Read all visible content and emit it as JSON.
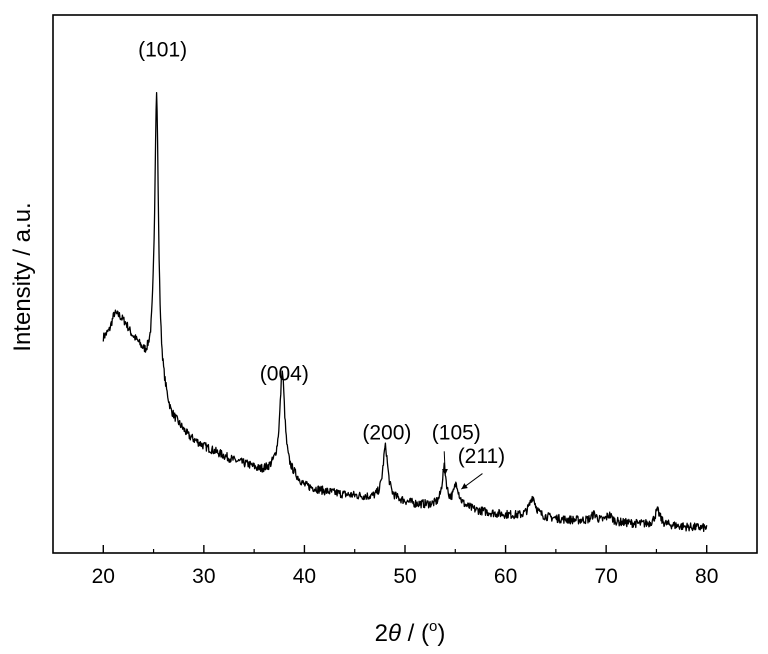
{
  "chart_data": {
    "type": "line",
    "xlabel": {
      "prefix": "2",
      "theta": "θ",
      "sep": " / (",
      "degree": "o",
      "suffix": ")"
    },
    "ylabel": "Intensity / a.u.",
    "xlim": [
      15,
      85
    ],
    "ylim": [
      0,
      100
    ],
    "y_ticks_shown": false,
    "x_ticks": [
      20,
      30,
      40,
      50,
      60,
      70,
      80
    ],
    "x_tick_labels": [
      "20",
      "30",
      "40",
      "50",
      "60",
      "70",
      "80"
    ],
    "grid": false,
    "line_color": "#000000",
    "baseline_points": [
      [
        20.0,
        45.5
      ],
      [
        20.6,
        47.0
      ],
      [
        21.1,
        50.5
      ],
      [
        21.6,
        50.0
      ],
      [
        22.2,
        48.5
      ],
      [
        22.8,
        46.0
      ],
      [
        23.5,
        43.8
      ],
      [
        24.2,
        41.0
      ],
      [
        24.7,
        40.5
      ],
      [
        25.0,
        42.0
      ],
      [
        26.0,
        34.0
      ],
      [
        26.7,
        29.0
      ],
      [
        27.5,
        27.0
      ],
      [
        28.5,
        24.5
      ],
      [
        30.0,
        22.5
      ],
      [
        31.5,
        21.0
      ],
      [
        33.0,
        19.5
      ],
      [
        34.5,
        18.5
      ],
      [
        35.5,
        17.5
      ],
      [
        36.5,
        17.5
      ],
      [
        37.0,
        17.8
      ],
      [
        39.0,
        16.0
      ],
      [
        40.0,
        14.0
      ],
      [
        42.0,
        13.0
      ],
      [
        44.0,
        12.3
      ],
      [
        46.0,
        11.8
      ],
      [
        47.0,
        11.5
      ],
      [
        47.6,
        11.5
      ],
      [
        49.5,
        11.0
      ],
      [
        51.0,
        10.3
      ],
      [
        53.0,
        10.0
      ],
      [
        53.6,
        10.0
      ],
      [
        55.7,
        9.8
      ],
      [
        57.0,
        9.0
      ],
      [
        59.0,
        8.3
      ],
      [
        61.5,
        7.8
      ],
      [
        62.2,
        8.0
      ],
      [
        64.0,
        7.5
      ],
      [
        66.0,
        7.0
      ],
      [
        68.0,
        6.8
      ],
      [
        70.0,
        6.5
      ],
      [
        72.0,
        6.3
      ],
      [
        74.0,
        6.0
      ],
      [
        76.5,
        5.8
      ],
      [
        78.0,
        5.5
      ],
      [
        80.0,
        5.3
      ]
    ],
    "peaks": [
      {
        "center": 25.3,
        "height": 57.5,
        "width": 0.22
      },
      {
        "center": 37.8,
        "height": 21.0,
        "width": 0.3
      },
      {
        "center": 48.05,
        "height": 11.0,
        "width": 0.3
      },
      {
        "center": 53.9,
        "height": 7.8,
        "width": 0.26
      },
      {
        "center": 55.1,
        "height": 4.5,
        "width": 0.3
      },
      {
        "center": 62.7,
        "height": 4.0,
        "width": 0.35
      },
      {
        "center": 68.8,
        "height": 1.5,
        "width": 0.3
      },
      {
        "center": 70.3,
        "height": 1.5,
        "width": 0.35
      },
      {
        "center": 75.1,
        "height": 3.0,
        "width": 0.32
      }
    ],
    "noise_amplitude": 0.9,
    "annotations": [
      {
        "label": "(101)",
        "x": 25.9,
        "y": 105.0,
        "arrow": false
      },
      {
        "label": "(004)",
        "x": 38.0,
        "y": 36.5,
        "arrow": false
      },
      {
        "label": "(200)",
        "x": 48.2,
        "y": 24.0,
        "arrow": false
      },
      {
        "label": "(105)",
        "x": 55.1,
        "y": 24.0,
        "arrow": true,
        "arrow_to_x": 54.0,
        "arrow_to_y": 16.5,
        "arrow_from_x": 53.9,
        "arrow_from_y": 21.5
      },
      {
        "label": "(211)",
        "x": 57.6,
        "y": 19.0,
        "arrow": true,
        "arrow_to_x": 55.6,
        "arrow_to_y": 13.5,
        "arrow_from_x": 57.7,
        "arrow_from_y": 16.8
      }
    ]
  }
}
